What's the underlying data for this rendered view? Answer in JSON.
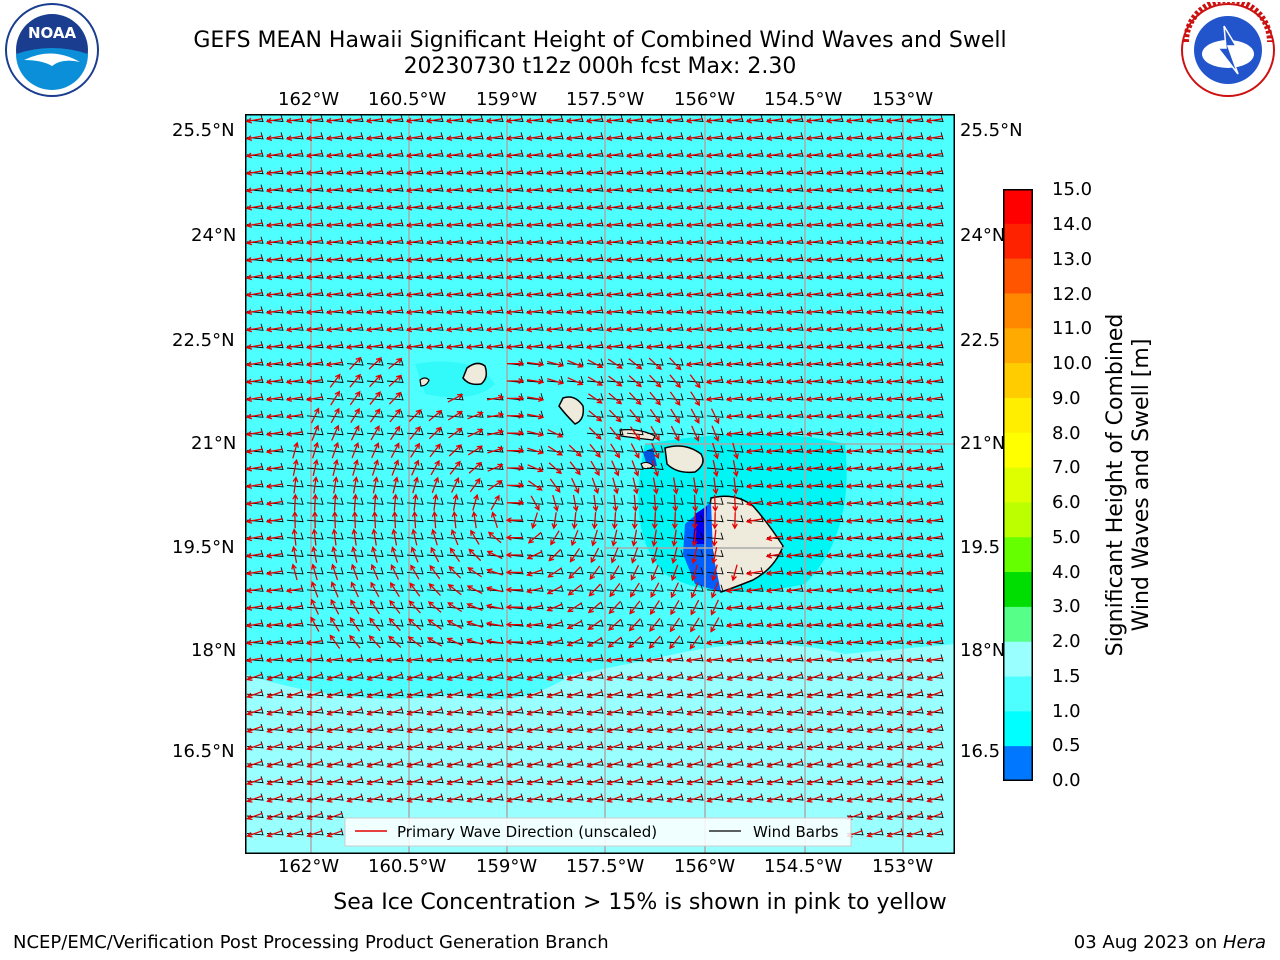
{
  "header": {
    "title_line1": "GEFS MEAN Hawaii Significant Height of Combined Wind Waves and Swell",
    "title_line2": "20230730 t12z 000h fcst   Max: 2.30"
  },
  "logos": {
    "left": {
      "text": "NOAA",
      "ring": "NATIONAL OCEANIC AND ATMOSPHERIC ADMINISTRATION",
      "sub": "U.S. DEPARTMENT OF COMMERCE"
    },
    "right": {
      "ring": "NATIONAL WEATHER SERVICE"
    }
  },
  "map": {
    "lon_labels": [
      "162°W",
      "160.5°W",
      "159°W",
      "157.5°W",
      "156°W",
      "154.5°W",
      "153°W"
    ],
    "lat_labels": [
      "25.5°N",
      "24°N",
      "22.5°N",
      "21°N",
      "19.5°N",
      "18°N",
      "16.5°N"
    ],
    "right_lat_labels": [
      "25.5°N",
      "24°N",
      "22.5",
      "21°N",
      "19.5",
      "18°N",
      "16.5"
    ],
    "legend": {
      "wave": "Primary Wave Direction (unscaled)",
      "barb": "Wind Barbs"
    },
    "colors": {
      "ocean": "#4dffff",
      "ocean_light": "#99ffff",
      "ocean_mid": "#00ffff",
      "land": "#eeeadc",
      "arrow": "#e60000"
    }
  },
  "colorbar": {
    "label_line1": "Significant Height of Combined",
    "label_line2": "Wind Waves and Swell [m]",
    "ticks": [
      "15.0",
      "14.0",
      "13.0",
      "12.0",
      "11.0",
      "10.0",
      "9.0",
      "8.0",
      "7.0",
      "6.0",
      "5.0",
      "4.0",
      "3.0",
      "2.0",
      "1.5",
      "1.0",
      "0.5",
      "0.0"
    ],
    "colors": [
      "#ff0000",
      "#ff2200",
      "#ff5500",
      "#ff8800",
      "#ffaa00",
      "#ffcc00",
      "#ffee00",
      "#ffff00",
      "#ddff00",
      "#bbff00",
      "#66ff00",
      "#00dd00",
      "#55ff88",
      "#99ffff",
      "#4dffff",
      "#00ffff",
      "#0077ff",
      "#0000ff"
    ]
  },
  "notes": {
    "sea_ice": "Sea Ice Concentration > 15% is shown in pink to yellow"
  },
  "footer": {
    "left": "NCEP/EMC/Verification Post Processing Product Generation Branch",
    "date": "03 Aug 2023 on ",
    "machine": "Hera"
  }
}
